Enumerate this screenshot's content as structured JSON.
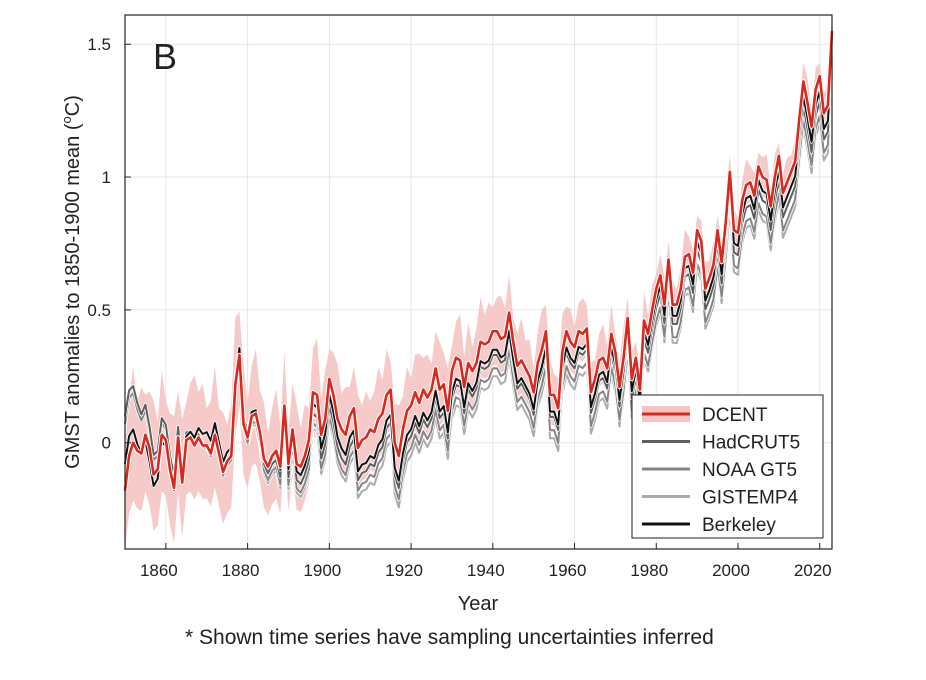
{
  "chart_data": {
    "type": "line",
    "panel_label": "B",
    "xlabel": "Year",
    "ylabel": "GMST anomalies to 1850-1900 mean (°C)",
    "ylabel_parts": [
      "GMST anomalies to 1850-1900 mean (",
      "o",
      "C)"
    ],
    "xlim": [
      1850,
      2023
    ],
    "ylim": [
      -0.4,
      1.61
    ],
    "xticks": [
      1860,
      1880,
      1900,
      1920,
      1940,
      1960,
      1980,
      2000,
      2020
    ],
    "xtick_labels": [
      "1860",
      "1880",
      "1900",
      "1920",
      "1940",
      "1960",
      "1980",
      "2000",
      "2020"
    ],
    "yticks": [
      0,
      0.5,
      1,
      1.5
    ],
    "ytick_labels": [
      "0",
      "0.5",
      "1",
      "1.5"
    ],
    "grid": true,
    "legend_position": "bottom-right",
    "footnote": "* Shown time series have sampling uncertainties inferred",
    "colors": {
      "dcent": "#d42a20",
      "band": "#f4c4c2",
      "hadcrut5": "#5e5e5e",
      "noaa": "#858585",
      "gistemp": "#ababab",
      "berkeley": "#111111"
    },
    "years_start": 1850,
    "dcent": [
      -0.18,
      -0.05,
      0.0,
      -0.03,
      -0.04,
      0.03,
      -0.02,
      -0.12,
      -0.1,
      0.03,
      0.01,
      -0.1,
      -0.17,
      0.02,
      -0.15,
      0.01,
      0.02,
      -0.01,
      0.02,
      -0.01,
      -0.01,
      -0.04,
      0.03,
      -0.04,
      -0.11,
      -0.07,
      -0.05,
      0.22,
      0.33,
      0.07,
      0.02,
      0.1,
      0.11,
      0.04,
      -0.06,
      -0.09,
      -0.05,
      -0.03,
      -0.09,
      0.14,
      -0.08,
      0.05,
      -0.08,
      -0.09,
      -0.05,
      0.01,
      0.19,
      0.18,
      0.03,
      0.09,
      0.24,
      0.18,
      0.09,
      0.05,
      0.03,
      0.1,
      0.13,
      -0.02,
      0.01,
      0.02,
      0.05,
      0.04,
      0.09,
      0.11,
      0.18,
      0.2,
      0.0,
      -0.05,
      0.05,
      0.12,
      0.14,
      0.19,
      0.15,
      0.2,
      0.17,
      0.2,
      0.28,
      0.2,
      0.22,
      0.12,
      0.27,
      0.32,
      0.31,
      0.21,
      0.3,
      0.27,
      0.3,
      0.38,
      0.37,
      0.38,
      0.42,
      0.42,
      0.39,
      0.4,
      0.49,
      0.38,
      0.29,
      0.31,
      0.28,
      0.25,
      0.19,
      0.3,
      0.35,
      0.42,
      0.18,
      0.18,
      0.13,
      0.34,
      0.42,
      0.38,
      0.36,
      0.42,
      0.41,
      0.43,
      0.19,
      0.24,
      0.31,
      0.32,
      0.28,
      0.41,
      0.34,
      0.21,
      0.32,
      0.47,
      0.24,
      0.32,
      0.2,
      0.46,
      0.41,
      0.5,
      0.58,
      0.63,
      0.52,
      0.69,
      0.52,
      0.52,
      0.58,
      0.7,
      0.71,
      0.64,
      0.8,
      0.76,
      0.58,
      0.62,
      0.67,
      0.8,
      0.68,
      0.83,
      1.02,
      0.8,
      0.79,
      0.91,
      0.97,
      0.98,
      0.93,
      1.04,
      1.0,
      0.99,
      0.89,
      1.0,
      1.08,
      0.94,
      0.98,
      1.02,
      1.06,
      1.22,
      1.36,
      1.28,
      1.19,
      1.33,
      1.38,
      1.24,
      1.27,
      1.55
    ],
    "dcent_band_halfwidth": {
      "years": [
        1850,
        1880,
        1900,
        1950,
        1980,
        2023
      ],
      "values": [
        0.22,
        0.19,
        0.16,
        0.12,
        0.08,
        0.07
      ]
    },
    "series": [
      {
        "name": "HadCRUT5",
        "key": "hadcrut5",
        "start": 1850,
        "offset_from_dcent": {
          "years": [
            1850,
            1856,
            1870,
            1880,
            1900,
            1910,
            1940,
            1960,
            1980,
            2023
          ],
          "values": [
            0.28,
            0.08,
            0.0,
            0.0,
            -0.1,
            -0.13,
            -0.09,
            -0.08,
            -0.07,
            -0.1
          ]
        }
      },
      {
        "name": "NOAA GT5",
        "key": "noaa",
        "start": 1850,
        "offset_from_dcent": {
          "years": [
            1850,
            1856,
            1870,
            1880,
            1900,
            1910,
            1940,
            1960,
            1980,
            2023
          ],
          "values": [
            0.25,
            0.06,
            -0.01,
            -0.02,
            -0.14,
            -0.17,
            -0.14,
            -0.13,
            -0.12,
            -0.15
          ]
        }
      },
      {
        "name": "GISTEMP4",
        "key": "gistemp",
        "start": 1880,
        "offset_from_dcent": {
          "years": [
            1880,
            1900,
            1910,
            1940,
            1960,
            1980,
            2023
          ],
          "values": [
            -0.03,
            -0.16,
            -0.2,
            -0.17,
            -0.16,
            -0.14,
            -0.18
          ]
        }
      },
      {
        "name": "Berkeley",
        "key": "berkeley",
        "start": 1850,
        "offset_from_dcent": {
          "years": [
            1850,
            1856,
            1870,
            1880,
            1900,
            1910,
            1940,
            1960,
            1980,
            2023
          ],
          "values": [
            0.1,
            -0.05,
            0.05,
            0.02,
            -0.06,
            -0.1,
            -0.07,
            -0.06,
            -0.04,
            -0.06
          ]
        }
      }
    ],
    "legend": [
      "DCENT",
      "HadCRUT5",
      "NOAA GT5",
      "GISTEMP4",
      "Berkeley"
    ]
  }
}
